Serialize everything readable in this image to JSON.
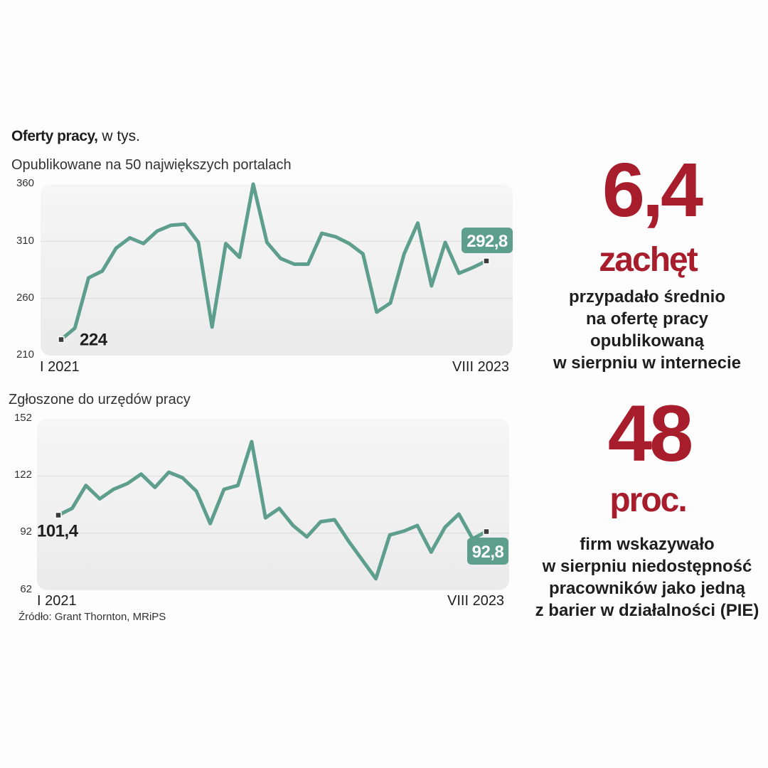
{
  "header": {
    "title_bold": "Oferty pracy,",
    "title_rest": " w tys."
  },
  "source": "Źródło: Grant Thornton, MRiPS",
  "colors": {
    "line": "#5d9e8c",
    "callout": "#5d9e8c",
    "stat": "#a81d2c",
    "plot_bg": "#ebebeb"
  },
  "chart_data": [
    {
      "type": "line",
      "title": "Opublikowane  na 50 największych portalach",
      "ylim": [
        210,
        360
      ],
      "yticks": [
        "360",
        "310",
        "260",
        "210"
      ],
      "xlabels": [
        "I 2021",
        "VIII 2023"
      ],
      "grid": true,
      "values": [
        224,
        234,
        278,
        284,
        304,
        313,
        308,
        319,
        324,
        325,
        309,
        235,
        308,
        296,
        360,
        309,
        295,
        290,
        290,
        317,
        314,
        308,
        299,
        248,
        256,
        299,
        326,
        271,
        309,
        282,
        287,
        292.8
      ],
      "start_label": "224",
      "end_label": "292,8"
    },
    {
      "type": "line",
      "title": "Zgłoszone do urzędów pracy",
      "ylim": [
        62,
        152
      ],
      "yticks": [
        "152",
        "122",
        "92",
        "62"
      ],
      "xlabels": [
        "I 2021",
        "VIII 2023"
      ],
      "grid": true,
      "values": [
        101.4,
        105,
        117,
        110,
        115,
        118,
        123,
        116,
        124,
        121,
        114,
        97,
        115,
        117,
        140,
        100,
        105,
        96,
        90,
        98,
        99,
        88,
        78,
        68,
        91,
        93,
        96,
        82,
        95,
        102,
        89,
        92.8
      ],
      "start_label": "101,4",
      "end_label": "92,8"
    }
  ],
  "stats": [
    {
      "number": "6,4",
      "unit": "zachęt",
      "desc": [
        "przypadało średnio",
        "na ofertę pracy",
        "opublikowaną",
        "w sierpniu w internecie"
      ]
    },
    {
      "number": "48",
      "unit": "proc.",
      "desc": [
        "firm wskazywało",
        "w sierpniu niedostępność",
        "pracowników jako jedną",
        "z barier w działalności (PIE)"
      ]
    }
  ]
}
